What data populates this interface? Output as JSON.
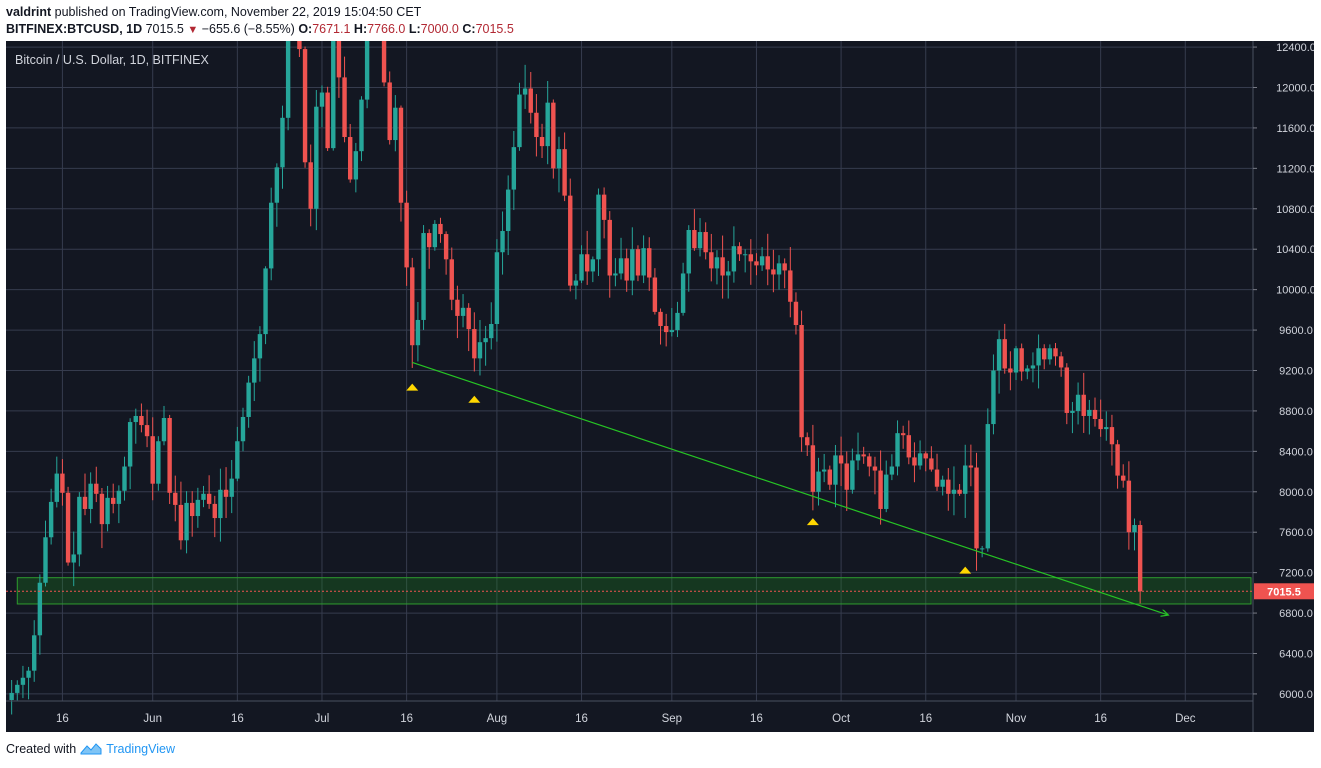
{
  "header": {
    "author": "valdrint",
    "published_text": "published on TradingView.com, November 22, 2019 15:04:50 CET",
    "symbol": "BITFINEX:BTCUSD, 1D",
    "last": "7015.5",
    "change": "−655.6 (−8.55%)",
    "o_label": "O:",
    "o_value": "7671.1",
    "h_label": "H:",
    "h_value": "7766.0",
    "l_label": "L:",
    "l_value": "7000.0",
    "c_label": "C:",
    "c_value": "7015.5"
  },
  "footer": {
    "created_with": "Created with",
    "brand": "TradingView"
  },
  "colors": {
    "up": "#26a69a",
    "down": "#ef5350",
    "background": "#131722",
    "grid": "#363c4e",
    "trendline": "#26c424",
    "zone": "#1e8c1e",
    "marker": "#ffd700"
  },
  "chart_data": {
    "type": "candlestick",
    "title": "Bitcoin / U.S. Dollar, 1D, BITFINEX",
    "x_tick_labels": [
      "16",
      "Jun",
      "16",
      "Jul",
      "16",
      "Aug",
      "16",
      "Sep",
      "16",
      "Oct",
      "16",
      "Nov",
      "16",
      "Dec"
    ],
    "x_ticks": [
      "2019-05-16",
      "2019-06-01",
      "2019-06-16",
      "2019-07-01",
      "2019-07-16",
      "2019-08-01",
      "2019-08-16",
      "2019-09-01",
      "2019-09-16",
      "2019-10-01",
      "2019-10-16",
      "2019-11-01",
      "2019-11-16",
      "2019-12-01"
    ],
    "x_range": [
      "2019-05-06",
      "2019-12-13"
    ],
    "y_ticks": [
      6000.0,
      6400.0,
      6800.0,
      7200.0,
      7600.0,
      8000.0,
      8400.0,
      8800.0,
      9200.0,
      9600.0,
      10000.0,
      10400.0,
      10800.0,
      11200.0,
      11600.0,
      12000.0,
      12400.0
    ],
    "ylim": [
      5930,
      12460
    ],
    "last_price": 7015.5,
    "last_price_label": "7015.5",
    "support_zone": [
      6890,
      7150
    ],
    "trendline": {
      "from": [
        "2019-07-17",
        9280
      ],
      "to": [
        "2019-11-28",
        6780
      ]
    },
    "markers": [
      {
        "date": "2019-07-17",
        "price": 9050
      },
      {
        "date": "2019-07-28",
        "price": 8930
      },
      {
        "date": "2019-09-26",
        "price": 7720
      },
      {
        "date": "2019-10-23",
        "price": 7240
      }
    ],
    "closes": [
      6010,
      6090,
      6160,
      6230,
      6580,
      7100,
      7550,
      7900,
      8180,
      7990,
      7300,
      7380,
      7950,
      7830,
      8080,
      7980,
      7680,
      7940,
      7880,
      8010,
      8250,
      8690,
      8750,
      8660,
      8550,
      8080,
      8500,
      8730,
      7990,
      7870,
      7520,
      7890,
      7760,
      7920,
      7980,
      7880,
      7740,
      8020,
      7950,
      8130,
      8500,
      8740,
      9080,
      9320,
      9560,
      10210,
      10860,
      11210,
      11700,
      12880,
      13900,
      12380,
      11260,
      10800,
      11810,
      11950,
      11400,
      12590,
      12100,
      11510,
      11090,
      11370,
      11880,
      12570,
      13150,
      12850,
      12050,
      11480,
      11800,
      10860,
      10220,
      9450,
      9700,
      10560,
      10420,
      10650,
      10550,
      10300,
      9900,
      9740,
      9820,
      9610,
      9320,
      9480,
      9520,
      9660,
      10370,
      10580,
      10990,
      11410,
      11930,
      11990,
      11750,
      11510,
      11420,
      11850,
      11200,
      11390,
      10930,
      10040,
      10090,
      10350,
      10180,
      10300,
      10940,
      10690,
      10140,
      10160,
      10310,
      10090,
      10400,
      10140,
      10410,
      10120,
      9780,
      9640,
      9580,
      9600,
      9770,
      10160,
      10590,
      10410,
      10570,
      10370,
      10210,
      10320,
      10140,
      10180,
      10430,
      10350,
      10350,
      10280,
      10240,
      10330,
      10200,
      10150,
      10260,
      10190,
      9880,
      9650,
      8540,
      8460,
      8000,
      8200,
      8220,
      8070,
      8360,
      8280,
      8020,
      8310,
      8370,
      8350,
      8250,
      8210,
      7830,
      8170,
      8250,
      8580,
      8560,
      8340,
      8260,
      8380,
      8330,
      8220,
      8050,
      8120,
      7980,
      8020,
      7980,
      8260,
      8240,
      7440,
      7440,
      8670,
      9200,
      9510,
      9220,
      9180,
      9420,
      9190,
      9220,
      9250,
      9420,
      9310,
      9420,
      9340,
      9230,
      8780,
      8800,
      8960,
      8750,
      8810,
      8720,
      8620,
      8640,
      8470,
      8160,
      8110,
      7600,
      7671.1,
      7015.5
    ]
  }
}
